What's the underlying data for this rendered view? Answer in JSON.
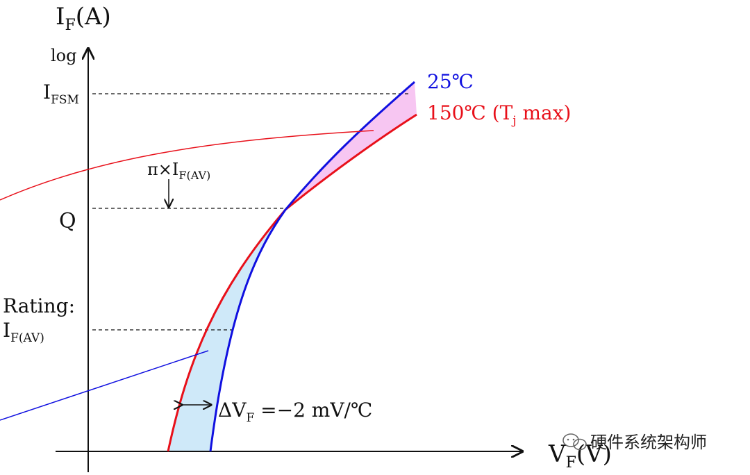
{
  "axes": {
    "y_label": "I",
    "y_label_sub": "F",
    "y_label_unit": "(A)",
    "y_scale_note": "log",
    "x_label": "V",
    "x_label_sub": "F",
    "x_label_unit": "(V)"
  },
  "levels": {
    "ifsm": "I",
    "ifsm_sub": "FSM",
    "q": "Q",
    "rating": "Rating:",
    "ifav": "I",
    "ifav_sub": "F(AV)"
  },
  "curves": {
    "c25": {
      "label": "25℃",
      "color": "#1010e0"
    },
    "c150": {
      "label_a": "150℃ (T",
      "label_sub": "j",
      "label_b": " max)",
      "color": "#e8101a"
    }
  },
  "annotations": {
    "pi_prefix": "π×I",
    "pi_sub": "F(AV)",
    "dvf_a": "ΔV",
    "dvf_sub": "F",
    "dvf_b": " =−2 mV/℃"
  },
  "colors": {
    "fill_high": "#f7c6f2",
    "fill_low": "#cfe9f9"
  },
  "watermark": "硬件系统架构师"
}
